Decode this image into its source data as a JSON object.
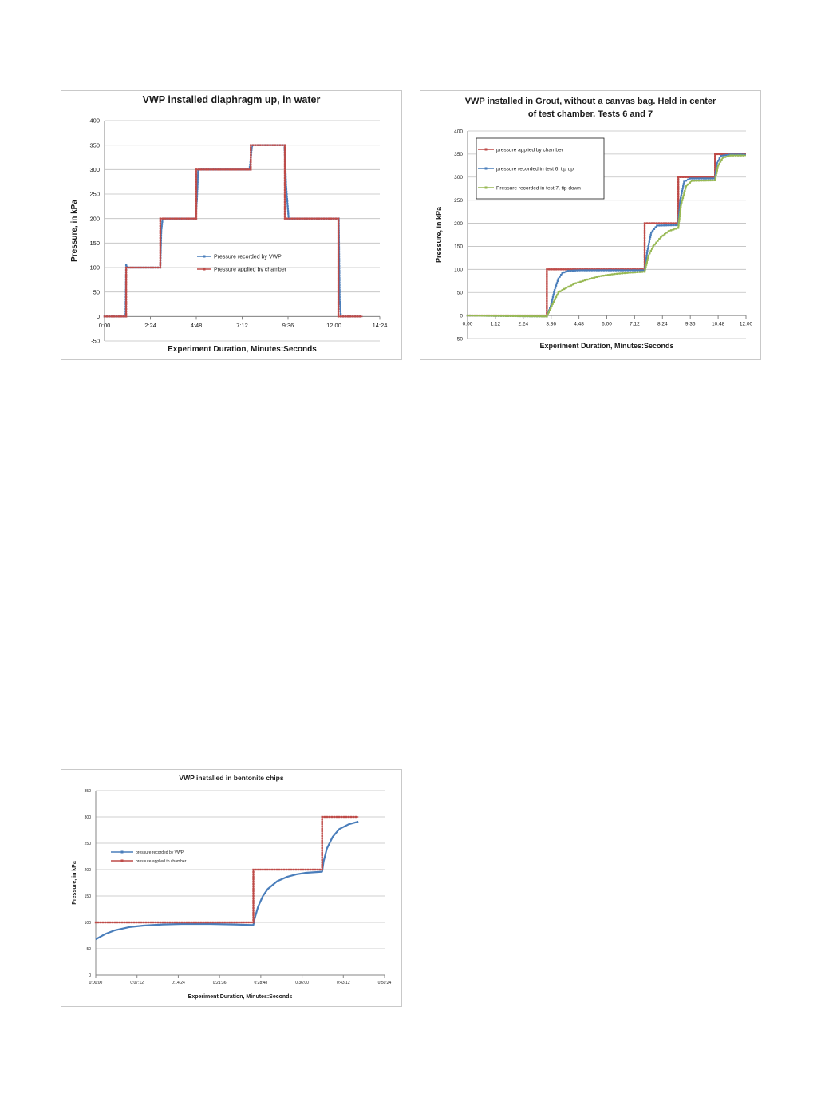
{
  "chart_data": [
    {
      "type": "line",
      "title": [
        "VWP installed diaphragm up, in water"
      ],
      "xlabel": "Experiment Duration, Minutes:Seconds",
      "ylabel": "Pressure, in kPa",
      "xlim": [
        0,
        864
      ],
      "ylim": [
        -50,
        400
      ],
      "xticks": [
        {
          "v": 0,
          "label": "0:00"
        },
        {
          "v": 144,
          "label": "2:24"
        },
        {
          "v": 288,
          "label": "4:48"
        },
        {
          "v": 432,
          "label": "7:12"
        },
        {
          "v": 576,
          "label": "9:36"
        },
        {
          "v": 720,
          "label": "12:00"
        },
        {
          "v": 864,
          "label": "14:24"
        }
      ],
      "yticks": [
        -50,
        0,
        50,
        100,
        150,
        200,
        250,
        300,
        350,
        400
      ],
      "grid": true,
      "legend_position": "center-right",
      "series": [
        {
          "name": "Pressure recorded by VWP",
          "color": "#4a7ebb",
          "marker": "diamond",
          "points": [
            [
              0,
              0
            ],
            [
              66,
              0
            ],
            [
              68,
              105
            ],
            [
              72,
              100
            ],
            [
              175,
              100
            ],
            [
              178,
              175
            ],
            [
              182,
              198
            ],
            [
              186,
              200
            ],
            [
              286,
              200
            ],
            [
              290,
              240
            ],
            [
              294,
              298
            ],
            [
              298,
              300
            ],
            [
              455,
              300
            ],
            [
              458,
              315
            ],
            [
              462,
              345
            ],
            [
              466,
              350
            ],
            [
              565,
              350
            ],
            [
              570,
              265
            ],
            [
              578,
              200
            ],
            [
              583,
              200
            ],
            [
              735,
              200
            ],
            [
              738,
              35
            ],
            [
              742,
              0
            ],
            [
              810,
              0
            ]
          ]
        },
        {
          "name": "Pressure applied by chamber",
          "color": "#be4b48",
          "marker": "square",
          "points": [
            [
              0,
              0
            ],
            [
              68,
              0
            ],
            [
              68,
              100
            ],
            [
              175,
              100
            ],
            [
              175,
              200
            ],
            [
              288,
              200
            ],
            [
              288,
              300
            ],
            [
              459,
              300
            ],
            [
              459,
              350
            ],
            [
              566,
              350
            ],
            [
              566,
              200
            ],
            [
              734,
              200
            ],
            [
              734,
              0
            ],
            [
              810,
              0
            ]
          ]
        }
      ]
    },
    {
      "type": "line",
      "title": [
        "VWP installed in Grout, without a canvas bag.  Held in center",
        "of test chamber.  Tests 6 and 7"
      ],
      "xlabel": "Experiment Duration, Minutes:Seconds",
      "ylabel": "Pressure, in kPa",
      "xlim": [
        0,
        720
      ],
      "ylim": [
        -50,
        400
      ],
      "xticks": [
        {
          "v": 0,
          "label": "0:00"
        },
        {
          "v": 72,
          "label": "1:12"
        },
        {
          "v": 144,
          "label": "2:24"
        },
        {
          "v": 216,
          "label": "3:36"
        },
        {
          "v": 288,
          "label": "4:48"
        },
        {
          "v": 360,
          "label": "6:00"
        },
        {
          "v": 432,
          "label": "7:12"
        },
        {
          "v": 504,
          "label": "8:24"
        },
        {
          "v": 576,
          "label": "9:36"
        },
        {
          "v": 648,
          "label": "10:48"
        },
        {
          "v": 720,
          "label": "12:00"
        }
      ],
      "yticks": [
        -50,
        0,
        50,
        100,
        150,
        200,
        250,
        300,
        350,
        400
      ],
      "grid": true,
      "legend_position": "top-left",
      "series": [
        {
          "name": "pressure applied by chamber",
          "color": "#be4b48",
          "marker": "square",
          "points": [
            [
              0,
              0
            ],
            [
              205,
              0
            ],
            [
              205,
              100
            ],
            [
              458,
              100
            ],
            [
              458,
              200
            ],
            [
              545,
              200
            ],
            [
              545,
              300
            ],
            [
              640,
              300
            ],
            [
              640,
              350
            ],
            [
              720,
              350
            ]
          ]
        },
        {
          "name": "pressure recorded in test 6, tip up",
          "color": "#4a7ebb",
          "marker": "diamond",
          "points": [
            [
              0,
              0
            ],
            [
              205,
              -2
            ],
            [
              215,
              20
            ],
            [
              225,
              55
            ],
            [
              235,
              80
            ],
            [
              245,
              92
            ],
            [
              260,
              97
            ],
            [
              290,
              98
            ],
            [
              458,
              98
            ],
            [
              465,
              140
            ],
            [
              475,
              180
            ],
            [
              490,
              195
            ],
            [
              545,
              196
            ],
            [
              550,
              250
            ],
            [
              560,
              290
            ],
            [
              575,
              297
            ],
            [
              640,
              297
            ],
            [
              645,
              330
            ],
            [
              655,
              346
            ],
            [
              675,
              349
            ],
            [
              720,
              349
            ]
          ]
        },
        {
          "name": "Pressure recorded in test 7, tip down",
          "color": "#98b954",
          "marker": "triangle",
          "points": [
            [
              0,
              0
            ],
            [
              205,
              -2
            ],
            [
              220,
              25
            ],
            [
              235,
              50
            ],
            [
              255,
              60
            ],
            [
              280,
              70
            ],
            [
              310,
              78
            ],
            [
              340,
              85
            ],
            [
              380,
              90
            ],
            [
              420,
              93
            ],
            [
              458,
              95
            ],
            [
              468,
              130
            ],
            [
              480,
              150
            ],
            [
              500,
              170
            ],
            [
              520,
              183
            ],
            [
              545,
              190
            ],
            [
              552,
              240
            ],
            [
              565,
              280
            ],
            [
              580,
              292
            ],
            [
              640,
              293
            ],
            [
              648,
              325
            ],
            [
              660,
              342
            ],
            [
              680,
              347
            ],
            [
              720,
              347
            ]
          ]
        }
      ]
    },
    {
      "type": "line",
      "title": [
        "VWP installed in bentonite chips"
      ],
      "xlabel": "Experiment Duration, Minutes:Seconds",
      "ylabel": "Pressure, in kPa",
      "xlim": [
        0,
        3024
      ],
      "ylim": [
        0,
        350
      ],
      "xticks": [
        {
          "v": 0,
          "label": "0:00:00"
        },
        {
          "v": 432,
          "label": "0:07:12"
        },
        {
          "v": 864,
          "label": "0:14:24"
        },
        {
          "v": 1296,
          "label": "0:21:36"
        },
        {
          "v": 1728,
          "label": "0:28:48"
        },
        {
          "v": 2160,
          "label": "0:36:00"
        },
        {
          "v": 2592,
          "label": "0:43:12"
        },
        {
          "v": 3024,
          "label": "0:50:24"
        }
      ],
      "yticks": [
        0,
        50,
        100,
        150,
        200,
        250,
        300,
        350
      ],
      "grid": true,
      "legend_position": "left",
      "series": [
        {
          "name": "pressure recorded by VWP",
          "color": "#4a7ebb",
          "marker": "none",
          "points": [
            [
              0,
              68
            ],
            [
              100,
              78
            ],
            [
              200,
              85
            ],
            [
              350,
              91
            ],
            [
              500,
              94
            ],
            [
              700,
              96
            ],
            [
              900,
              97
            ],
            [
              1200,
              97
            ],
            [
              1450,
              96
            ],
            [
              1650,
              95
            ],
            [
              1665,
              108
            ],
            [
              1700,
              130
            ],
            [
              1750,
              150
            ],
            [
              1800,
              163
            ],
            [
              1900,
              178
            ],
            [
              2000,
              186
            ],
            [
              2100,
              191
            ],
            [
              2200,
              194
            ],
            [
              2370,
              196
            ],
            [
              2385,
              215
            ],
            [
              2420,
              240
            ],
            [
              2480,
              262
            ],
            [
              2550,
              277
            ],
            [
              2650,
              286
            ],
            [
              2750,
              291
            ]
          ]
        },
        {
          "name": "pressure applied to chamber",
          "color": "#be4b48",
          "marker": "square",
          "points": [
            [
              0,
              100
            ],
            [
              1650,
              100
            ],
            [
              1650,
              200
            ],
            [
              2370,
              200
            ],
            [
              2370,
              300
            ],
            [
              2750,
              300
            ]
          ]
        }
      ]
    }
  ]
}
